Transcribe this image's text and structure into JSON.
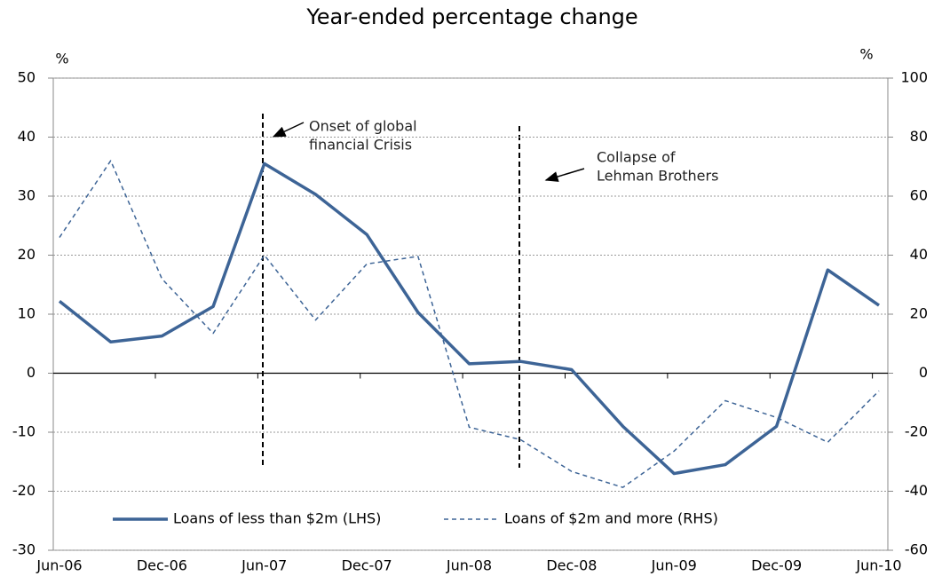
{
  "chart_data": {
    "type": "line",
    "title": "Year-ended percentage change",
    "y_unit": "%",
    "y2_unit": "%",
    "categories": [
      "Jun-06",
      null,
      "Dec-06",
      null,
      "Jun-07",
      null,
      "Dec-07",
      null,
      "Jun-08",
      null,
      "Dec-08",
      null,
      "Jun-09",
      null,
      "Dec-09",
      null,
      "Jun-10"
    ],
    "series": [
      {
        "name": "Loans of less than $2m (LHS)",
        "color": "#3d6496",
        "style": "solid",
        "values": [
          12.2,
          5.3,
          6.3,
          11.3,
          35.5,
          30.3,
          23.5,
          10.3,
          1.6,
          2.0,
          0.6,
          -9,
          -17,
          -15.5,
          -9,
          17.5,
          11.5
        ]
      },
      {
        "name": "Loans of $2m and more (RHS)",
        "color": "#3d6496",
        "style": "dashed",
        "axis": "y2",
        "values": [
          46,
          72,
          32,
          13.5,
          40,
          18,
          37,
          39.6,
          -18.3,
          -22.5,
          -33.3,
          -38.7,
          -26.4,
          -9.3,
          -15,
          -23.4,
          -6
        ]
      }
    ],
    "ylim": [
      -30,
      50
    ],
    "yticks": [
      -30,
      -20,
      -10,
      0,
      10,
      20,
      30,
      40,
      50
    ],
    "y2lim": [
      -60,
      100
    ],
    "y2ticks": [
      -60,
      -40,
      -20,
      0,
      20,
      40,
      60,
      80,
      100
    ],
    "grid": true,
    "annotations": [
      {
        "lines": [
          "Onset of global",
          "financial Crisis"
        ]
      },
      {
        "lines": [
          "Collapse of",
          "Lehman Brothers"
        ]
      }
    ]
  }
}
